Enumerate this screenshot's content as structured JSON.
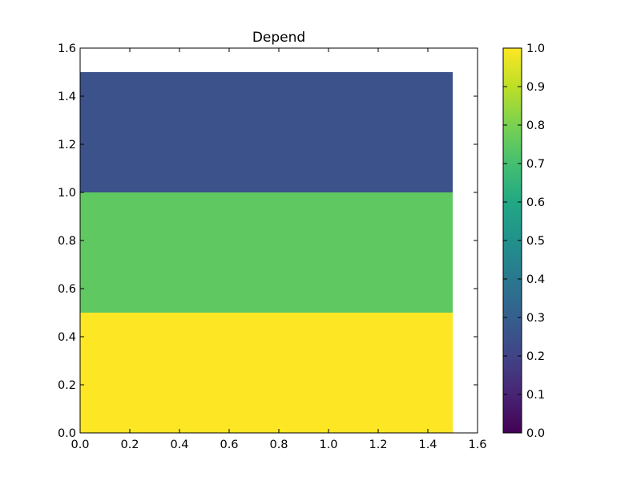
{
  "chart_data": {
    "type": "heatmap",
    "title": "Depend",
    "xlabel": "",
    "ylabel": "",
    "xlim": [
      0,
      1.6
    ],
    "ylim": [
      0,
      1.6
    ],
    "x_ticks": [
      "0.0",
      "0.2",
      "0.4",
      "0.6",
      "0.8",
      "1.0",
      "1.2",
      "1.4",
      "1.6"
    ],
    "y_ticks": [
      "0.0",
      "0.2",
      "0.4",
      "0.6",
      "0.8",
      "1.0",
      "1.2",
      "1.4",
      "1.6"
    ],
    "cells": [
      {
        "x0": 0.0,
        "x1": 1.5,
        "y0": 0.0,
        "y1": 0.5,
        "value": 1.0
      },
      {
        "x0": 0.0,
        "x1": 1.5,
        "y0": 0.5,
        "y1": 1.0,
        "value": 0.75
      },
      {
        "x0": 0.0,
        "x1": 1.5,
        "y0": 1.0,
        "y1": 1.5,
        "value": 0.25
      }
    ],
    "grid": false,
    "colorbar": {
      "colormap": "viridis",
      "range": [
        0.0,
        1.0
      ],
      "ticks": [
        "0.0",
        "0.1",
        "0.2",
        "0.3",
        "0.4",
        "0.5",
        "0.6",
        "0.7",
        "0.8",
        "0.9",
        "1.0"
      ],
      "placement": "right"
    }
  }
}
